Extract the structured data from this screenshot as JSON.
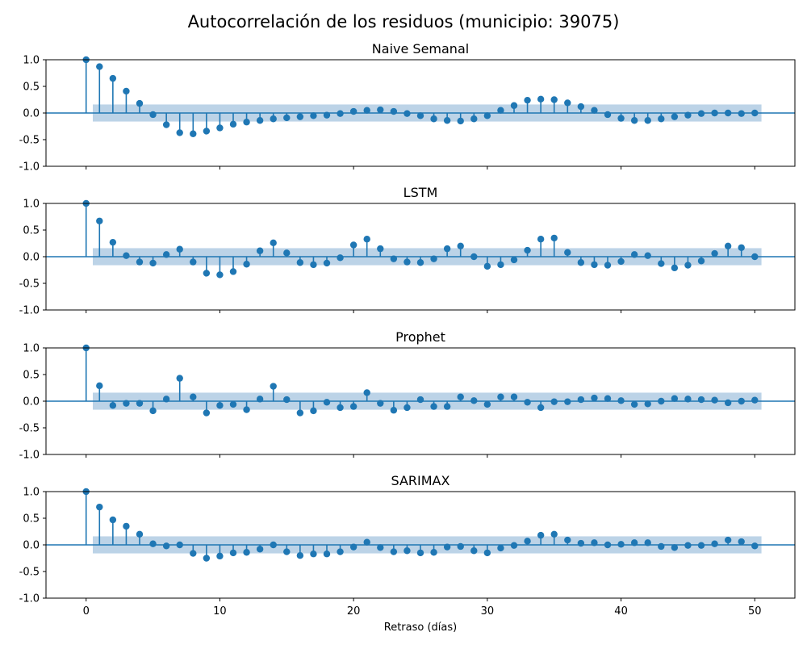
{
  "figure": {
    "suptitle": "Autocorrelación de los residuos (municipio: 39075)",
    "xlabel": "Retraso (días)"
  },
  "chart_data": [
    {
      "type": "stem",
      "title": "Naive Semanal",
      "xlim": [
        -3,
        53
      ],
      "ylim": [
        -1.0,
        1.0
      ],
      "x_ticks": [
        0,
        10,
        20,
        30,
        40,
        50
      ],
      "y_ticks": [
        -1.0,
        -0.5,
        0.0,
        0.5,
        1.0
      ],
      "confidence_band": 0.16,
      "lags": [
        0,
        1,
        2,
        3,
        4,
        5,
        6,
        7,
        8,
        9,
        10,
        11,
        12,
        13,
        14,
        15,
        16,
        17,
        18,
        19,
        20,
        21,
        22,
        23,
        24,
        25,
        26,
        27,
        28,
        29,
        30,
        31,
        32,
        33,
        34,
        35,
        36,
        37,
        38,
        39,
        40,
        41,
        42,
        43,
        44,
        45,
        46,
        47,
        48,
        49,
        50
      ],
      "values": [
        1.0,
        0.87,
        0.65,
        0.41,
        0.18,
        -0.03,
        -0.22,
        -0.37,
        -0.39,
        -0.34,
        -0.28,
        -0.21,
        -0.17,
        -0.14,
        -0.11,
        -0.09,
        -0.07,
        -0.05,
        -0.04,
        -0.01,
        0.03,
        0.05,
        0.06,
        0.03,
        -0.01,
        -0.05,
        -0.11,
        -0.14,
        -0.15,
        -0.11,
        -0.05,
        0.05,
        0.14,
        0.24,
        0.26,
        0.25,
        0.19,
        0.12,
        0.05,
        -0.03,
        -0.1,
        -0.14,
        -0.14,
        -0.11,
        -0.07,
        -0.04,
        -0.01,
        0.0,
        0.0,
        -0.01,
        0.0
      ]
    },
    {
      "type": "stem",
      "title": "LSTM",
      "xlim": [
        -3,
        53
      ],
      "ylim": [
        -1.0,
        1.0
      ],
      "x_ticks": [
        0,
        10,
        20,
        30,
        40,
        50
      ],
      "y_ticks": [
        -1.0,
        -0.5,
        0.0,
        0.5,
        1.0
      ],
      "confidence_band": 0.16,
      "lags": [
        0,
        1,
        2,
        3,
        4,
        5,
        6,
        7,
        8,
        9,
        10,
        11,
        12,
        13,
        14,
        15,
        16,
        17,
        18,
        19,
        20,
        21,
        22,
        23,
        24,
        25,
        26,
        27,
        28,
        29,
        30,
        31,
        32,
        33,
        34,
        35,
        36,
        37,
        38,
        39,
        40,
        41,
        42,
        43,
        44,
        45,
        46,
        47,
        48,
        49,
        50
      ],
      "values": [
        1.0,
        0.67,
        0.27,
        0.02,
        -0.1,
        -0.12,
        0.04,
        0.14,
        -0.1,
        -0.31,
        -0.34,
        -0.28,
        -0.14,
        0.11,
        0.26,
        0.07,
        -0.11,
        -0.15,
        -0.12,
        -0.02,
        0.22,
        0.33,
        0.15,
        -0.04,
        -0.1,
        -0.11,
        -0.04,
        0.15,
        0.2,
        0.0,
        -0.18,
        -0.15,
        -0.06,
        0.12,
        0.33,
        0.35,
        0.08,
        -0.11,
        -0.15,
        -0.16,
        -0.09,
        0.04,
        0.02,
        -0.13,
        -0.21,
        -0.16,
        -0.08,
        0.06,
        0.2,
        0.17,
        0.0
      ]
    },
    {
      "type": "stem",
      "title": "Prophet",
      "xlim": [
        -3,
        53
      ],
      "ylim": [
        -1.0,
        1.0
      ],
      "x_ticks": [
        0,
        10,
        20,
        30,
        40,
        50
      ],
      "y_ticks": [
        -1.0,
        -0.5,
        0.0,
        0.5,
        1.0
      ],
      "confidence_band": 0.16,
      "lags": [
        0,
        1,
        2,
        3,
        4,
        5,
        6,
        7,
        8,
        9,
        10,
        11,
        12,
        13,
        14,
        15,
        16,
        17,
        18,
        19,
        20,
        21,
        22,
        23,
        24,
        25,
        26,
        27,
        28,
        29,
        30,
        31,
        32,
        33,
        34,
        35,
        36,
        37,
        38,
        39,
        40,
        41,
        42,
        43,
        44,
        45,
        46,
        47,
        48,
        49,
        50
      ],
      "values": [
        1.0,
        0.29,
        -0.08,
        -0.04,
        -0.04,
        -0.18,
        0.04,
        0.43,
        0.08,
        -0.22,
        -0.08,
        -0.06,
        -0.16,
        0.04,
        0.28,
        0.03,
        -0.22,
        -0.18,
        -0.02,
        -0.12,
        -0.1,
        0.16,
        -0.04,
        -0.17,
        -0.12,
        0.03,
        -0.1,
        -0.1,
        0.08,
        0.01,
        -0.06,
        0.08,
        0.08,
        -0.02,
        -0.12,
        -0.01,
        -0.01,
        0.03,
        0.06,
        0.05,
        0.01,
        -0.06,
        -0.05,
        0.0,
        0.05,
        0.04,
        0.03,
        0.02,
        -0.03,
        0.0,
        0.02
      ]
    },
    {
      "type": "stem",
      "title": "SARIMAX",
      "xlim": [
        -3,
        53
      ],
      "ylim": [
        -1.0,
        1.0
      ],
      "x_ticks": [
        0,
        10,
        20,
        30,
        40,
        50
      ],
      "y_ticks": [
        -1.0,
        -0.5,
        0.0,
        0.5,
        1.0
      ],
      "confidence_band": 0.16,
      "lags": [
        0,
        1,
        2,
        3,
        4,
        5,
        6,
        7,
        8,
        9,
        10,
        11,
        12,
        13,
        14,
        15,
        16,
        17,
        18,
        19,
        20,
        21,
        22,
        23,
        24,
        25,
        26,
        27,
        28,
        29,
        30,
        31,
        32,
        33,
        34,
        35,
        36,
        37,
        38,
        39,
        40,
        41,
        42,
        43,
        44,
        45,
        46,
        47,
        48,
        49,
        50
      ],
      "values": [
        1.0,
        0.71,
        0.47,
        0.35,
        0.2,
        0.02,
        -0.02,
        0.0,
        -0.16,
        -0.25,
        -0.21,
        -0.15,
        -0.14,
        -0.08,
        0.0,
        -0.13,
        -0.2,
        -0.17,
        -0.17,
        -0.13,
        -0.04,
        0.05,
        -0.05,
        -0.13,
        -0.11,
        -0.15,
        -0.14,
        -0.04,
        -0.03,
        -0.11,
        -0.15,
        -0.06,
        -0.01,
        0.07,
        0.18,
        0.2,
        0.09,
        0.03,
        0.04,
        0.0,
        0.01,
        0.04,
        0.04,
        -0.03,
        -0.05,
        -0.01,
        -0.01,
        0.02,
        0.09,
        0.06,
        -0.02
      ]
    }
  ],
  "colors": {
    "stem": "#1f77b4",
    "band": "#b0cbe3",
    "axis": "#000000"
  }
}
